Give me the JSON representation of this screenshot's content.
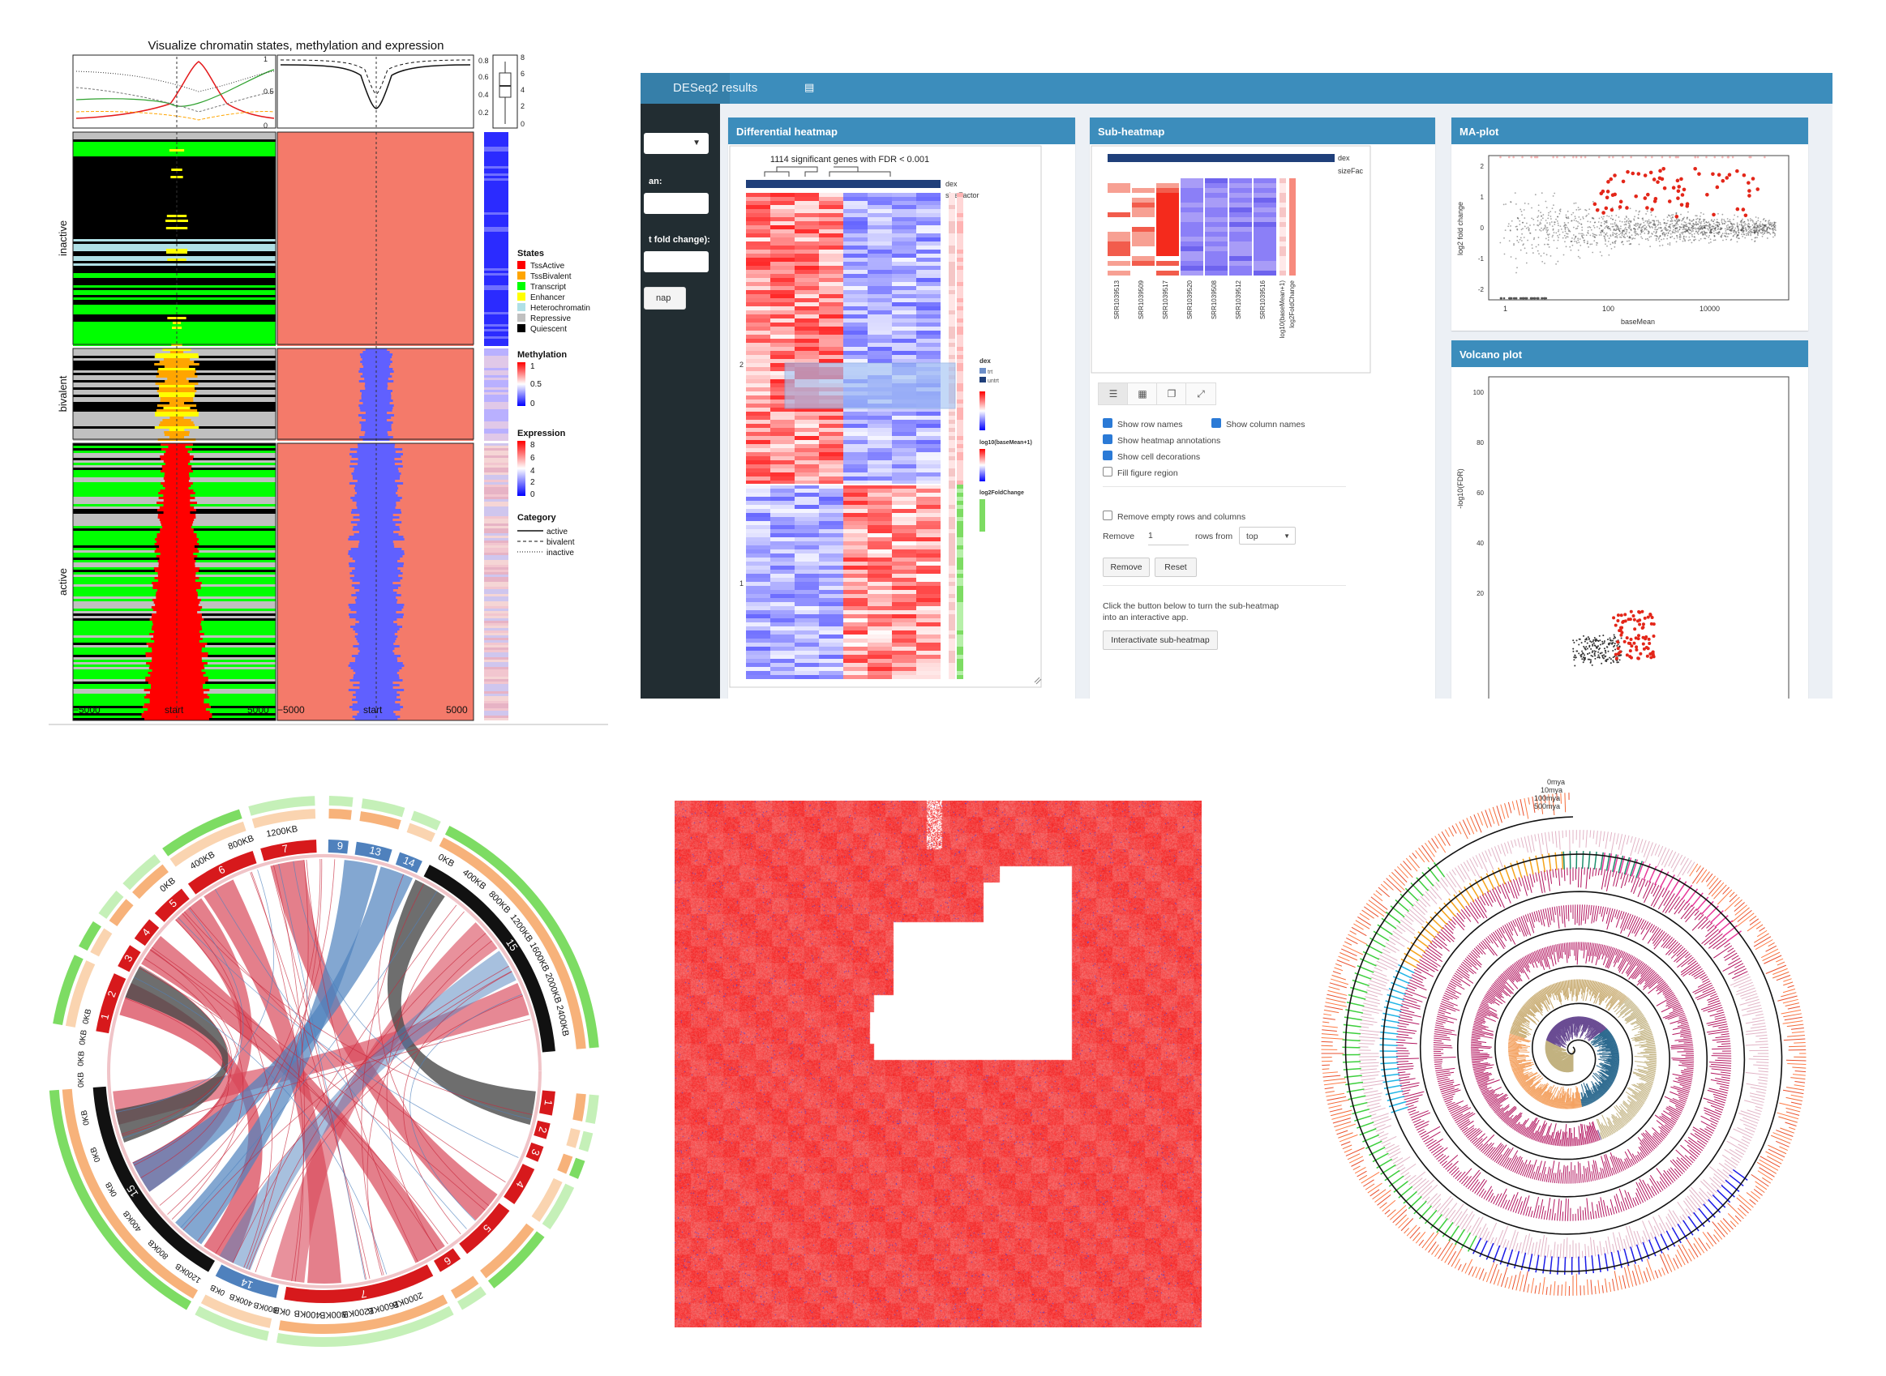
{
  "panel_a": {
    "title": "Visualize chromatin states, methylation and expression",
    "row_groups": [
      "inactive",
      "bivalent",
      "active"
    ],
    "top_axis_left": [
      "1",
      "0.5",
      "0"
    ],
    "top_axis_mid": [
      "0.8",
      "0.6",
      "0.4",
      "0.2"
    ],
    "top_axis_right": [
      "8",
      "6",
      "4",
      "2",
      "0"
    ],
    "x_ticks_left": [
      "−5000",
      "start",
      "5000"
    ],
    "x_ticks_right": [
      "−5000",
      "start",
      "5000"
    ],
    "legend": {
      "states_title": "States",
      "states": [
        {
          "label": "TssActive",
          "color": "#ff0000"
        },
        {
          "label": "TssBivalent",
          "color": "#ffa500"
        },
        {
          "label": "Transcript",
          "color": "#00ff00"
        },
        {
          "label": "Enhancer",
          "color": "#ffff00"
        },
        {
          "label": "Heterochromatin",
          "color": "#b0e0e6"
        },
        {
          "label": "Repressive",
          "color": "#c0c0c0"
        },
        {
          "label": "Quiescent",
          "color": "#000000"
        }
      ],
      "methylation_title": "Methylation",
      "methylation_ticks": [
        "1",
        "0.5",
        "0"
      ],
      "expression_title": "Expression",
      "expression_ticks": [
        "8",
        "6",
        "4",
        "2",
        "0"
      ],
      "category_title": "Category",
      "categories": [
        "active",
        "bivalent",
        "inactive"
      ]
    }
  },
  "app": {
    "header_title": "DESeq2 results",
    "sidebar": {
      "label_1": "an:",
      "label_2": "t fold change):",
      "button": "nap"
    },
    "diff_heatmap": {
      "box_title": "Differential heatmap",
      "plot_title": "1114 significant genes with FDR < 0.001",
      "annot_1": "dex",
      "annot_2": "sizeFactor",
      "legend_1": "dex",
      "legend_2": "trt",
      "legend_3": "untrt",
      "legend_4": "log10(baseMean+1)",
      "legend_5": "log2FoldChange",
      "row_labels": [
        "2",
        "1"
      ]
    },
    "sub_heatmap": {
      "box_title": "Sub-heatmap",
      "annot_1": "dex",
      "annot_2": "sizeFac",
      "columns": [
        "SRR1039513",
        "SRR1039509",
        "SRR1039517",
        "SRR1039520",
        "SRR1039508",
        "SRR1039512",
        "SRR1039516",
        "log10(baseMean+1)",
        "log2FoldChange"
      ],
      "tab_icons": [
        "list-icon",
        "table-icon",
        "layers-icon",
        "expand-icon"
      ],
      "options": [
        {
          "label": "Show row names",
          "checked": true
        },
        {
          "label": "Show column names",
          "checked": true
        },
        {
          "label": "Show heatmap annotations",
          "checked": true
        },
        {
          "label": "Show cell decorations",
          "checked": true
        },
        {
          "label": "Fill figure region",
          "checked": false
        }
      ],
      "remove_empty": {
        "label": "Remove empty rows and columns",
        "checked": false
      },
      "remove_label": "Remove",
      "remove_count": "1",
      "rows_from_label": "rows from",
      "rows_from_value": "top",
      "remove_button": "Remove",
      "reset_button": "Reset",
      "info_line_1": "Click the button below to turn the sub-heatmap",
      "info_line_2": "into an interactive app.",
      "interactivate_button": "Interactivate sub-heatmap"
    },
    "ma_plot": {
      "box_title": "MA-plot",
      "xlabel": "baseMean",
      "ylabel": "log2 fold change",
      "x_ticks": [
        "1",
        "100",
        "10000"
      ],
      "y_ticks": [
        "2",
        "1",
        "0",
        "-1",
        "-2"
      ]
    },
    "volcano_plot": {
      "box_title": "Volcano plot",
      "ylabel": "-log10(FDR)",
      "y_ticks": [
        "100",
        "80",
        "60",
        "40",
        "20"
      ]
    }
  },
  "panel_c": {
    "outer_ticks_top_left": [
      "0KB",
      "400KB",
      "800KB",
      "1200KB"
    ],
    "outer_ticks_top_right": [
      "0KB",
      "400KB",
      "800KB",
      "1200KB",
      "1600KB",
      "2000KB",
      "2400KB"
    ],
    "outer_ticks_bottom": [
      "2000KB",
      "1600KB",
      "1200KB",
      "800KB",
      "400KB",
      "0KB"
    ],
    "segment_labels_top": [
      "7",
      "6",
      "5",
      "4",
      "3",
      "2",
      "1",
      "9",
      "13",
      "14",
      "15"
    ],
    "segment_labels_bottom": [
      "1",
      "2",
      "3",
      "4",
      "5",
      "6",
      "7",
      "14",
      "15"
    ],
    "left_tick_labels": [
      "0KB",
      "0KB",
      "0KB",
      "0KB"
    ],
    "right_bottom_ticks": [
      "800KB",
      "400KB",
      "0KB"
    ],
    "left_bottom_ticks": [
      "1200KB",
      "800KB",
      "400KB",
      "0KB",
      "0KB",
      "0KB"
    ],
    "colors": {
      "red": "#d7191c",
      "grey": "#4a4a4a",
      "blue": "#4f81bd",
      "black": "#111111"
    }
  },
  "panel_e": {
    "scale_labels": [
      "0mya",
      "10mya",
      "100mya",
      "500mya"
    ]
  }
}
